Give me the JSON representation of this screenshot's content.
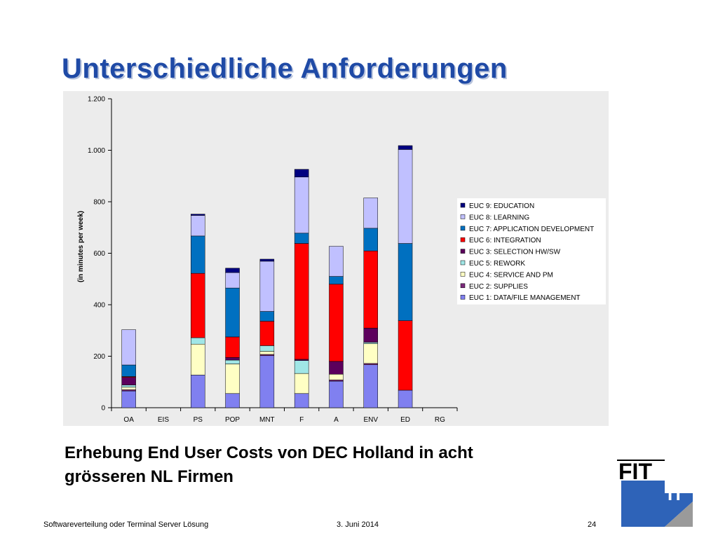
{
  "slide": {
    "title": "Unterschiedliche Anforderungen",
    "subtitle_line1": "Erhebung End User Costs von DEC Holland in acht",
    "subtitle_line2": "grösseren NL Firmen"
  },
  "footer": {
    "left": "Softwareverteilung oder Terminal Server Lösung",
    "center": "3. Juni 2014",
    "page_number": "24"
  },
  "logo": {
    "word1": "FIT",
    "word2": "IT",
    "color": "#2e63b8"
  },
  "chart_data": {
    "type": "bar",
    "stacked": true,
    "ylabel": "(in minutes per week)",
    "ylim": [
      0,
      1200
    ],
    "yticks": [
      0,
      200,
      400,
      600,
      800,
      1000,
      1200
    ],
    "ytick_labels": [
      "0",
      "200",
      "400",
      "600",
      "800",
      "1.000",
      "1.200"
    ],
    "grid": false,
    "legend_position": "right",
    "categories": [
      "OA",
      "EIS",
      "PS",
      "POP",
      "MNT",
      "F",
      "A",
      "ENV",
      "ED",
      "RG"
    ],
    "series": [
      {
        "name": "EUC 1: DATA/FILE MANAGEMENT",
        "color": "#8080f0",
        "values": [
          65,
          0,
          127,
          55,
          202,
          55,
          103,
          167,
          68,
          0
        ]
      },
      {
        "name": "EUC 2: SUPPLIES",
        "color": "#7b2a7b",
        "values": [
          5,
          0,
          0,
          0,
          5,
          0,
          5,
          5,
          0,
          0
        ]
      },
      {
        "name": "EUC 4: SERVICE AND PM",
        "color": "#ffffc4",
        "values": [
          10,
          0,
          120,
          115,
          12,
          78,
          22,
          77,
          0,
          0
        ]
      },
      {
        "name": "EUC 5: REWORK",
        "color": "#a0e6e6",
        "values": [
          8,
          0,
          25,
          15,
          22,
          50,
          0,
          5,
          0,
          0
        ]
      },
      {
        "name": "EUC 3: SELECTION HW/SW",
        "color": "#5c005c",
        "values": [
          30,
          0,
          0,
          10,
          0,
          5,
          50,
          55,
          0,
          0
        ]
      },
      {
        "name": "EUC 6: INTEGRATION",
        "color": "#ff0000",
        "values": [
          3,
          0,
          250,
          80,
          95,
          450,
          300,
          300,
          270,
          0
        ]
      },
      {
        "name": "EUC 7: APPLICATION DEVELOPMENT",
        "color": "#0070c0",
        "values": [
          45,
          0,
          145,
          190,
          38,
          40,
          30,
          88,
          300,
          0
        ]
      },
      {
        "name": "EUC 8: LEARNING",
        "color": "#c0c0ff",
        "values": [
          137,
          0,
          80,
          60,
          195,
          218,
          117,
          118,
          365,
          0
        ]
      },
      {
        "name": "EUC 9: EDUCATION",
        "color": "#000080",
        "values": [
          0,
          0,
          5,
          17,
          8,
          30,
          0,
          0,
          15,
          0
        ]
      }
    ],
    "legend_order": [
      "EUC 9: EDUCATION",
      "EUC 8: LEARNING",
      "EUC 7: APPLICATION DEVELOPMENT",
      "EUC 6: INTEGRATION",
      "EUC 3: SELECTION HW/SW",
      "EUC 5: REWORK",
      "EUC 4: SERVICE AND PM",
      "EUC 2: SUPPLIES",
      "EUC 1: DATA/FILE MANAGEMENT"
    ]
  }
}
